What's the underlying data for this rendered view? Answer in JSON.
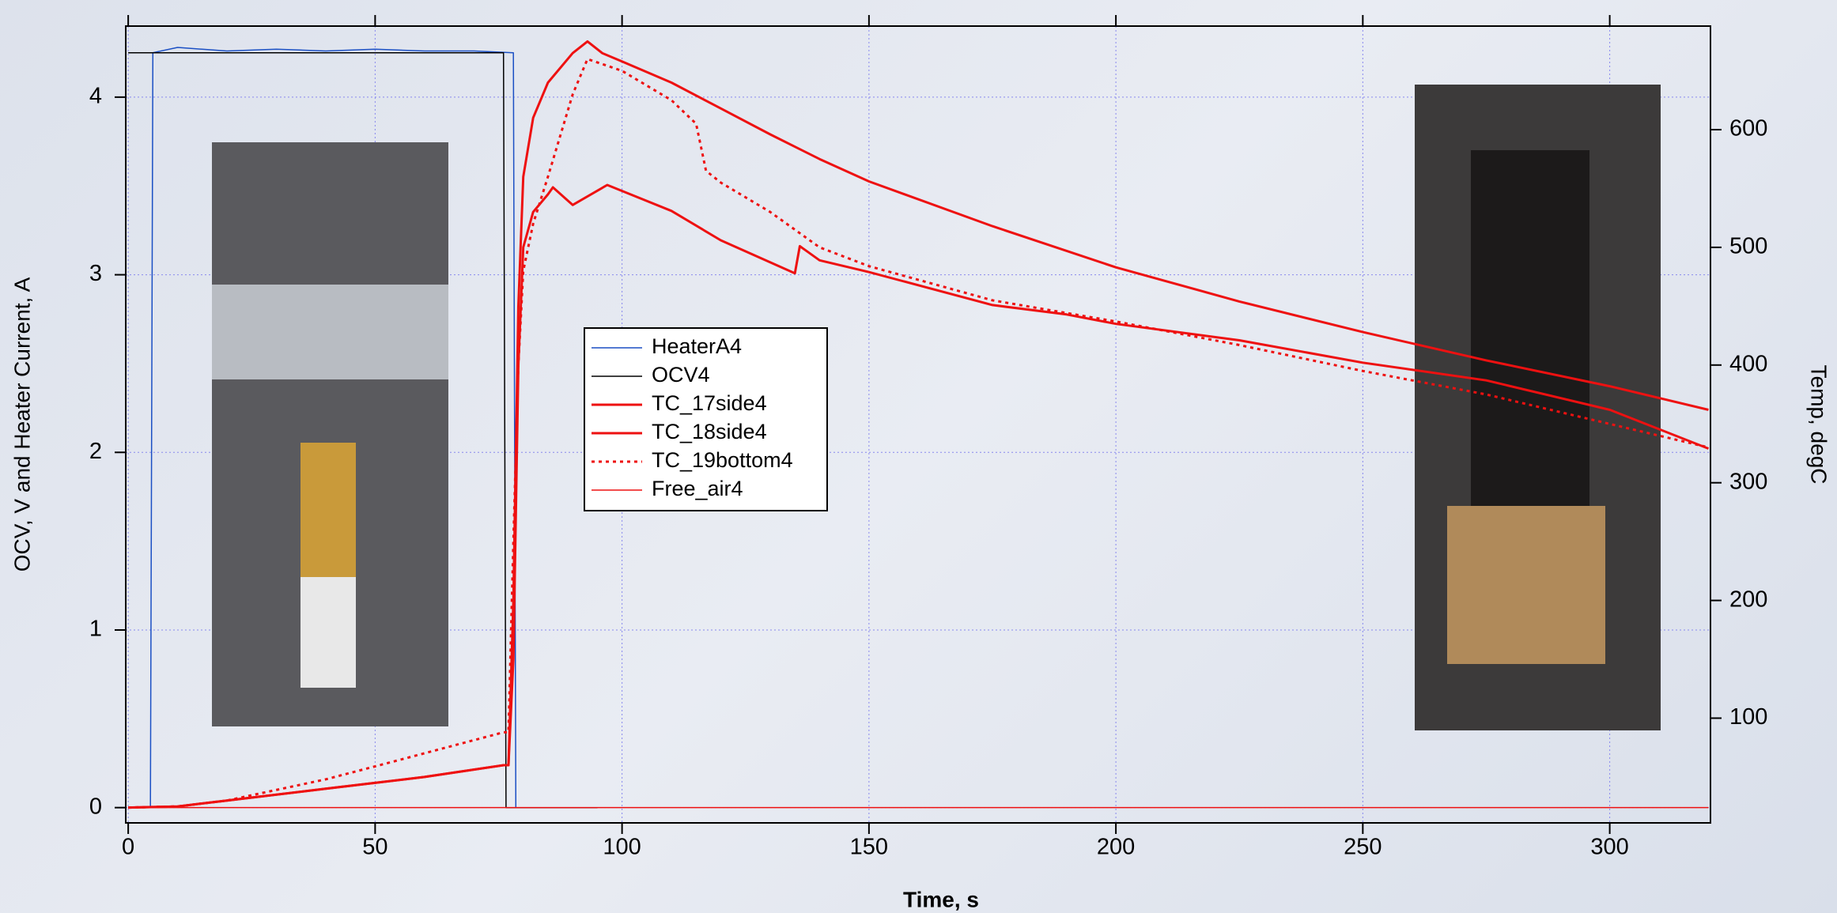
{
  "chart_data": {
    "type": "line",
    "xlabel": "Time, s",
    "ylabel": "OCV, V and Heater Current, A",
    "y2label": "Temp, degC",
    "xlim": [
      -0.5,
      320.4
    ],
    "xticks": [
      0,
      50,
      100,
      150,
      200,
      250,
      300
    ],
    "ylim": [
      -0.086,
      4.4
    ],
    "yticks": [
      0,
      1,
      2,
      3,
      4
    ],
    "y2lim": [
      11,
      688
    ],
    "y2ticks": [
      100,
      200,
      300,
      400,
      500,
      600
    ],
    "grid": true,
    "series": [
      {
        "name": "HeaterA4",
        "color": "#1a4fc4",
        "line_style": "solid",
        "line_width": 1.5,
        "x": [
          0,
          4.5,
          5,
          10,
          20,
          30,
          40,
          50,
          60,
          70,
          78,
          78.5,
          80,
          95
        ],
        "values": [
          0,
          0,
          4.25,
          4.28,
          4.26,
          4.27,
          4.26,
          4.27,
          4.26,
          4.26,
          4.25,
          0,
          0,
          0
        ]
      },
      {
        "name": "OCV4",
        "color": "#000000",
        "line_style": "solid",
        "line_width": 1.5,
        "x": [
          0,
          76,
          76.5,
          95
        ],
        "values": [
          4.25,
          4.25,
          0,
          0
        ]
      },
      {
        "name": "TC_17side4",
        "color": "#ee1111",
        "line_style": "solid",
        "line_width": 3,
        "axis": "y2",
        "x": [
          0,
          10,
          20,
          40,
          60,
          76,
          77,
          78,
          79,
          80,
          82,
          85,
          90,
          93,
          96,
          100,
          110,
          120,
          130,
          140,
          150,
          175,
          200,
          225,
          250,
          275,
          300,
          320
        ],
        "values": [
          24,
          25,
          30,
          40,
          50,
          60,
          60,
          200,
          450,
          560,
          610,
          640,
          665,
          675,
          665,
          658,
          640,
          618,
          596,
          575,
          556,
          518,
          483,
          454,
          428,
          404,
          382,
          362
        ]
      },
      {
        "name": "TC_18side4",
        "color": "#ee1111",
        "line_style": "solid",
        "line_width": 3,
        "axis": "y2",
        "x": [
          0,
          10,
          20,
          40,
          60,
          76,
          77,
          78,
          79,
          80,
          82,
          85,
          86,
          90,
          97,
          110,
          120,
          135,
          136,
          140,
          150,
          175,
          190,
          200,
          225,
          250,
          275,
          300,
          320
        ],
        "values": [
          24,
          25,
          30,
          40,
          50,
          60,
          60,
          150,
          400,
          500,
          530,
          545,
          551,
          536,
          553,
          531,
          506,
          478,
          501,
          489,
          479,
          451,
          443,
          435,
          421,
          402,
          387,
          362,
          329
        ]
      },
      {
        "name": "TC_19bottom4",
        "color": "#ee1111",
        "line_style": "dotted",
        "line_width": 3,
        "axis": "y2",
        "x": [
          0,
          10,
          20,
          40,
          50,
          76,
          77,
          78,
          79,
          80,
          82,
          85,
          90,
          93,
          100,
          110,
          115,
          117,
          120,
          130,
          140,
          150,
          175,
          200,
          225,
          250,
          275,
          300,
          320
        ],
        "values": [
          24,
          25,
          30,
          48,
          59,
          88,
          88,
          250,
          400,
          480,
          520,
          560,
          630,
          660,
          650,
          625,
          605,
          565,
          555,
          530,
          500,
          484,
          455,
          437,
          417,
          395,
          375,
          350,
          330
        ]
      },
      {
        "name": "Free_air4",
        "color": "#ee1111",
        "line_style": "solid",
        "line_width": 1.5,
        "axis": "y2",
        "x": [
          0,
          320
        ],
        "values": [
          24,
          24
        ]
      }
    ]
  }
}
